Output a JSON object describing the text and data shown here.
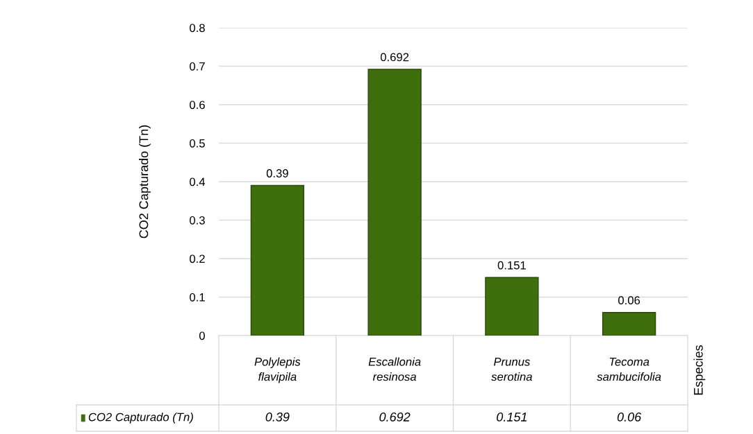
{
  "chart_data": {
    "type": "bar",
    "ylabel": "CO2 Capturado (Tn)",
    "categories": [
      "Polylepis flavipila",
      "Escallonia resinosa",
      "Prunus serotina",
      "Tecoma sambucifolia"
    ],
    "series": [
      {
        "name": "CO2 Capturado (Tn)",
        "color": "#3f6e0c",
        "values": [
          0.39,
          0.692,
          0.151,
          0.06
        ]
      }
    ],
    "annotations": [
      "0.39",
      "0.692",
      "0.151",
      "0.06",
      "Especies"
    ],
    "ylim": [
      0,
      0.8
    ],
    "yticks": [
      0,
      0.1,
      0.2,
      0.3,
      0.4,
      0.5,
      0.6,
      0.7,
      0.8
    ],
    "grid": "y",
    "data_labels": true,
    "legend": "bottom"
  }
}
